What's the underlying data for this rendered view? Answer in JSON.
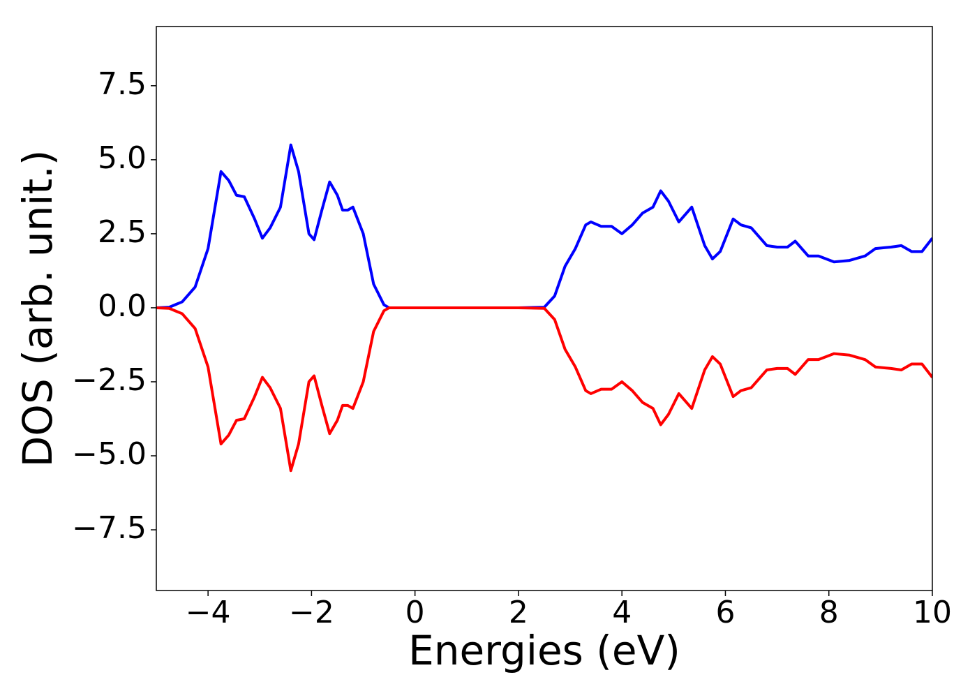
{
  "chart_data": {
    "type": "line",
    "x_label": "Energies (eV)",
    "y_label": "DOS (arb. unit.)",
    "x": [
      -5,
      -4.75,
      -4.5,
      -4.25,
      -4.0,
      -3.75,
      -3.6,
      -3.45,
      -3.3,
      -3.1,
      -2.95,
      -2.8,
      -2.6,
      -2.4,
      -2.25,
      -2.05,
      -1.95,
      -1.8,
      -1.65,
      -1.5,
      -1.4,
      -1.3,
      -1.2,
      -1.0,
      -0.8,
      -0.6,
      -0.5,
      0,
      1,
      2,
      2.5,
      2.7,
      2.9,
      3.1,
      3.3,
      3.4,
      3.6,
      3.8,
      4.0,
      4.2,
      4.4,
      4.6,
      4.75,
      4.9,
      5.1,
      5.35,
      5.6,
      5.75,
      5.9,
      6.15,
      6.3,
      6.5,
      6.8,
      7.0,
      7.2,
      7.35,
      7.6,
      7.8,
      8.1,
      8.4,
      8.7,
      8.9,
      9.2,
      9.4,
      9.6,
      9.8,
      10
    ],
    "series": [
      {
        "color": "#0000ff",
        "values": [
          0,
          0.02,
          0.2,
          0.7,
          2.0,
          4.6,
          4.3,
          3.8,
          3.75,
          3.0,
          2.35,
          2.7,
          3.4,
          5.5,
          4.6,
          2.5,
          2.3,
          3.3,
          4.25,
          3.8,
          3.3,
          3.3,
          3.4,
          2.5,
          0.8,
          0.1,
          0,
          0,
          0,
          0,
          0.02,
          0.4,
          1.4,
          2.0,
          2.8,
          2.9,
          2.75,
          2.75,
          2.5,
          2.8,
          3.2,
          3.4,
          3.95,
          3.6,
          2.9,
          3.4,
          2.1,
          1.65,
          1.9,
          3.0,
          2.8,
          2.7,
          2.1,
          2.05,
          2.05,
          2.25,
          1.75,
          1.75,
          1.55,
          1.6,
          1.75,
          2.0,
          2.05,
          2.1,
          1.9,
          1.9,
          2.35
        ]
      },
      {
        "color": "#ff0000",
        "values": [
          0,
          -0.02,
          -0.2,
          -0.7,
          -2.0,
          -4.6,
          -4.3,
          -3.8,
          -3.75,
          -3.0,
          -2.35,
          -2.7,
          -3.4,
          -5.5,
          -4.6,
          -2.5,
          -2.3,
          -3.3,
          -4.25,
          -3.8,
          -3.3,
          -3.3,
          -3.4,
          -2.5,
          -0.8,
          -0.1,
          0,
          0,
          0,
          0,
          -0.02,
          -0.4,
          -1.4,
          -2.0,
          -2.8,
          -2.9,
          -2.75,
          -2.75,
          -2.5,
          -2.8,
          -3.2,
          -3.4,
          -3.95,
          -3.6,
          -2.9,
          -3.4,
          -2.1,
          -1.65,
          -1.9,
          -3.0,
          -2.8,
          -2.7,
          -2.1,
          -2.05,
          -2.05,
          -2.25,
          -1.75,
          -1.75,
          -1.55,
          -1.6,
          -1.75,
          -2.0,
          -2.05,
          -2.1,
          -1.9,
          -1.9,
          -2.35
        ]
      }
    ],
    "xlim": [
      -5,
      10
    ],
    "ylim": [
      -9.55,
      9.5
    ],
    "xticks": [
      {
        "value": -4,
        "label": "−4"
      },
      {
        "value": -2,
        "label": "−2"
      },
      0,
      2,
      4,
      6,
      8,
      10
    ],
    "yticks": [
      {
        "value": -7.5,
        "label": "−7.5"
      },
      {
        "value": -5,
        "label": "−5.0"
      },
      {
        "value": -2.5,
        "label": "−2.5"
      },
      {
        "value": 0,
        "label": "0.0"
      },
      2.5,
      {
        "value": 5,
        "label": "5.0"
      },
      7.5
    ],
    "grid": false
  }
}
